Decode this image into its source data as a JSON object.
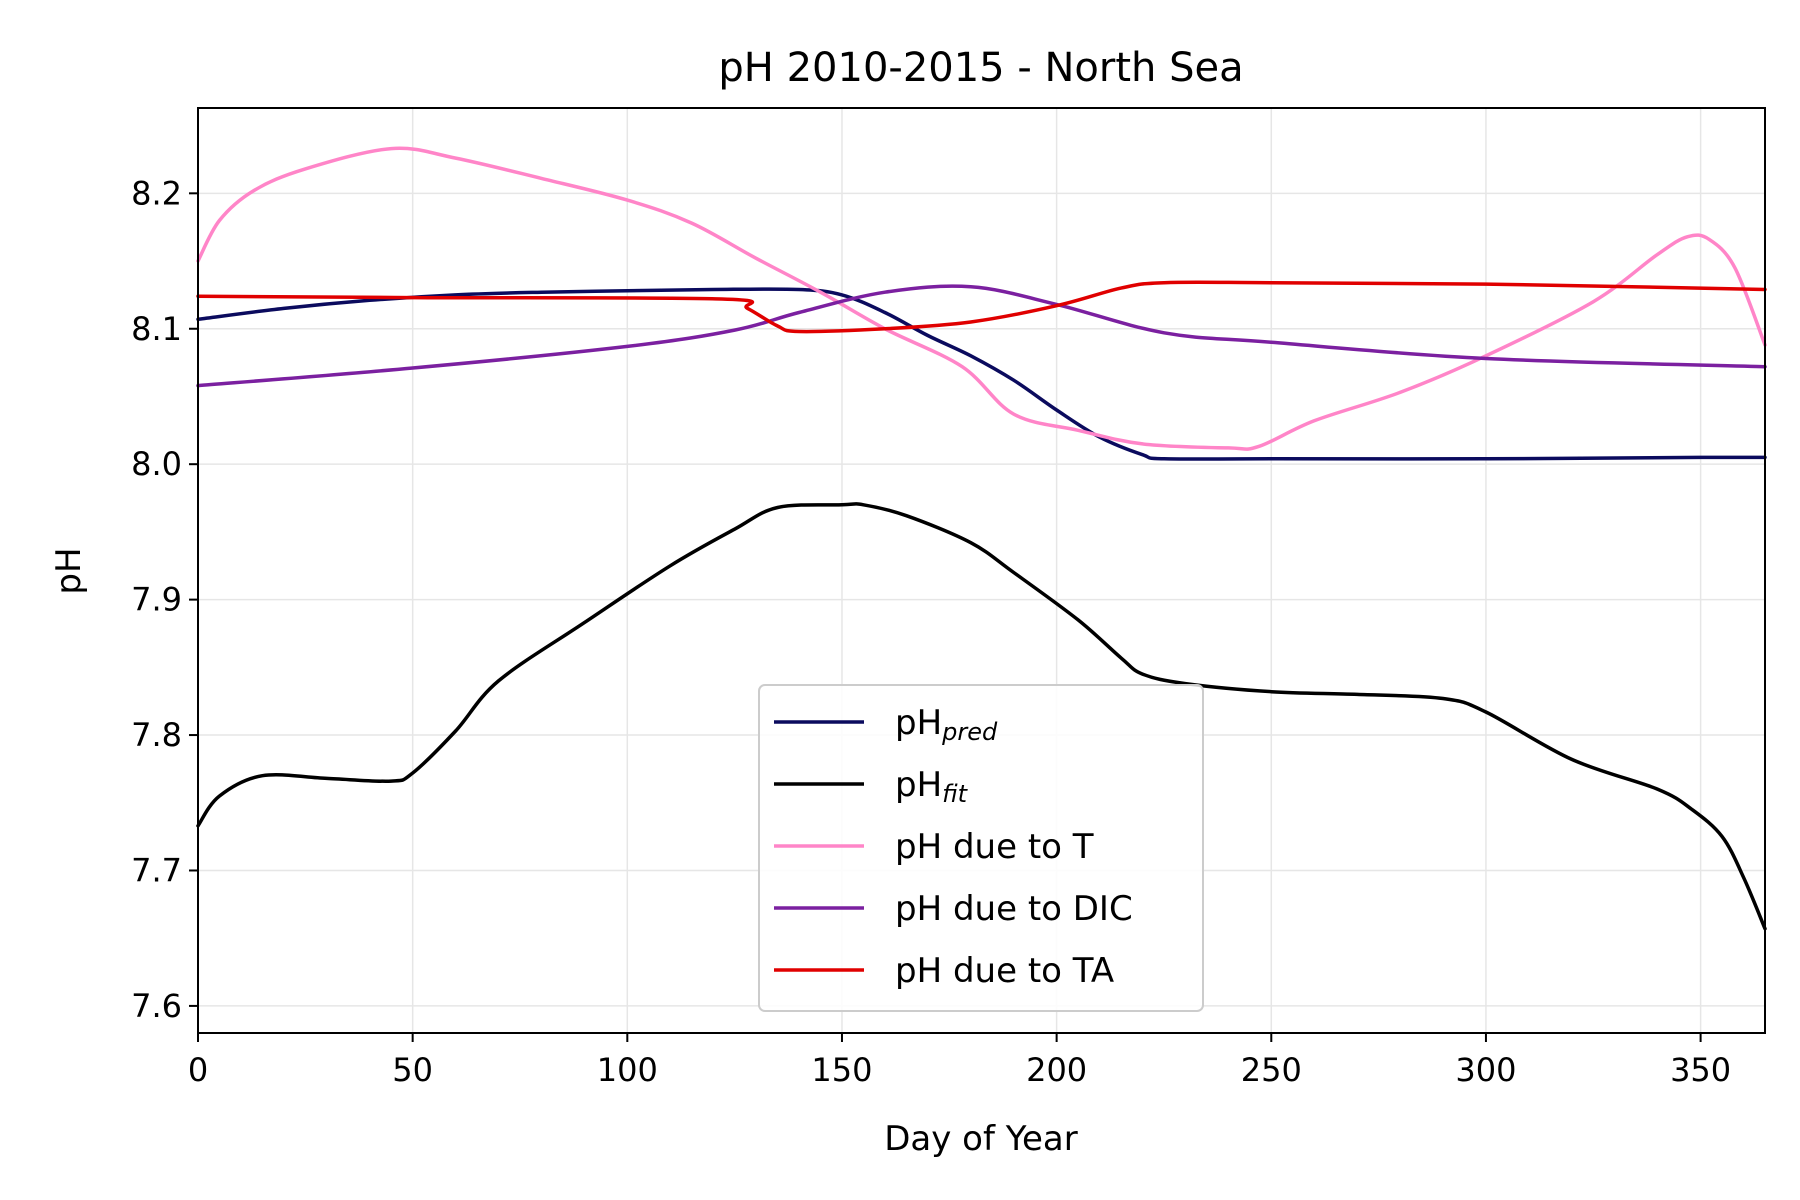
{
  "chart_data": {
    "type": "line",
    "title": "pH 2010-2015 - North Sea",
    "xlabel": "Day of Year",
    "ylabel": "pH",
    "xlim": [
      0,
      365
    ],
    "ylim": [
      7.58,
      8.263
    ],
    "xticks": [
      0,
      50,
      100,
      150,
      200,
      250,
      300,
      350
    ],
    "yticks": [
      7.6,
      7.7,
      7.8,
      7.9,
      8.0,
      8.1,
      8.2
    ],
    "xtick_labels": [
      "0",
      "50",
      "100",
      "150",
      "200",
      "250",
      "300",
      "350"
    ],
    "ytick_labels": [
      "7.6",
      "7.7",
      "7.8",
      "7.9",
      "8.0",
      "8.1",
      "8.2"
    ],
    "grid": true,
    "legend_position": "bottom-center",
    "series": [
      {
        "name": "pH",
        "subscript": "pred",
        "color": "#0b0b5e",
        "x": [
          0,
          20,
          40,
          60,
          80,
          100,
          120,
          140,
          150,
          160,
          170,
          180,
          190,
          200,
          210,
          220,
          225,
          250,
          300,
          350,
          365
        ],
        "y": [
          8.107,
          8.115,
          8.121,
          8.125,
          8.127,
          8.128,
          8.129,
          8.129,
          8.125,
          8.112,
          8.095,
          8.08,
          8.062,
          8.04,
          8.02,
          8.007,
          8.004,
          8.004,
          8.004,
          8.005,
          8.005
        ]
      },
      {
        "name": "pH",
        "subscript": "fit",
        "color": "#000000",
        "x": [
          0,
          5,
          15,
          30,
          45,
          50,
          60,
          70,
          90,
          110,
          125,
          135,
          150,
          155,
          165,
          180,
          190,
          205,
          215,
          220,
          230,
          250,
          270,
          290,
          300,
          320,
          340,
          348,
          355,
          360,
          365
        ],
        "y": [
          7.733,
          7.755,
          7.77,
          7.768,
          7.766,
          7.772,
          7.803,
          7.84,
          7.883,
          7.925,
          7.952,
          7.968,
          7.97,
          7.97,
          7.962,
          7.942,
          7.92,
          7.885,
          7.857,
          7.845,
          7.838,
          7.832,
          7.83,
          7.827,
          7.817,
          7.782,
          7.76,
          7.745,
          7.725,
          7.695,
          7.657
        ]
      },
      {
        "name": "pH due to T",
        "color": "#ff85c8",
        "x": [
          0,
          5,
          13,
          25,
          45,
          60,
          80,
          100,
          115,
          130,
          145,
          160,
          178,
          190,
          205,
          220,
          240,
          247,
          260,
          280,
          300,
          325,
          340,
          347,
          352,
          358,
          365
        ],
        "y": [
          8.15,
          8.18,
          8.202,
          8.218,
          8.233,
          8.226,
          8.211,
          8.195,
          8.178,
          8.152,
          8.127,
          8.1,
          8.072,
          8.037,
          8.025,
          8.015,
          8.012,
          8.013,
          8.032,
          8.053,
          8.08,
          8.12,
          8.155,
          8.168,
          8.166,
          8.145,
          8.088
        ]
      },
      {
        "name": "pH due to DIC",
        "color": "#7b20a0",
        "x": [
          0,
          50,
          100,
          125,
          140,
          160,
          180,
          200,
          225,
          250,
          300,
          365
        ],
        "y": [
          8.058,
          8.071,
          8.087,
          8.099,
          8.112,
          8.127,
          8.131,
          8.118,
          8.097,
          8.09,
          8.078,
          8.072
        ]
      },
      {
        "name": "pH due to TA",
        "color": "#e00000",
        "x": [
          0,
          50,
          122,
          128,
          135,
          140,
          160,
          180,
          200,
          215,
          225,
          250,
          300,
          365
        ],
        "y": [
          8.124,
          8.123,
          8.122,
          8.115,
          8.102,
          8.098,
          8.1,
          8.105,
          8.117,
          8.13,
          8.134,
          8.134,
          8.133,
          8.129
        ]
      }
    ]
  }
}
